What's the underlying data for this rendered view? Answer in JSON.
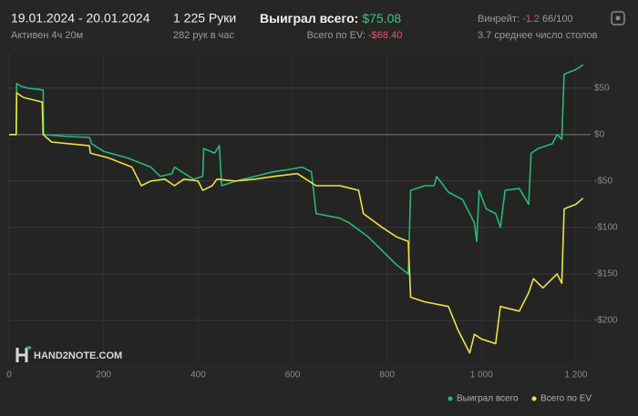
{
  "header": {
    "dates": "19.01.2024 - 20.01.2024",
    "active": "Активен 4ч 20м",
    "hands": "1 225 Руки",
    "rate": "282 рук в час",
    "won_label": "Выиграл всего:",
    "won_value": "$75.08",
    "ev_label": "Всего по EV:",
    "ev_value": "-$68.40",
    "winrate_label": "Винрейт:",
    "winrate_value": "-1.2",
    "winrate_unit": "66/100",
    "tables": "3.7 среднее число столов",
    "logo": "HAND2NOTE.COM"
  },
  "chart_data": {
    "type": "line",
    "xlim": [
      0,
      1231
    ],
    "ylim": [
      -247,
      88
    ],
    "xticks": [
      0,
      200,
      400,
      600,
      800,
      {
        "value": 1000,
        "label": "1 000"
      },
      {
        "value": 1200,
        "label": "1 200"
      }
    ],
    "yticks": [
      {
        "value": 50,
        "label": "$50"
      },
      {
        "value": 0,
        "label": "$0"
      },
      {
        "value": -50,
        "label": "-$50"
      },
      {
        "value": -100,
        "label": "-$100"
      },
      {
        "value": -150,
        "label": "-$150"
      },
      {
        "value": -200,
        "label": "-$200"
      }
    ],
    "grid": true,
    "series": [
      {
        "name": "Выиграл всего",
        "color": "#25b87c",
        "x": [
          0,
          15,
          16,
          25,
          40,
          72,
          73,
          120,
          170,
          175,
          200,
          250,
          300,
          320,
          345,
          350,
          390,
          410,
          412,
          435,
          445,
          450,
          480,
          520,
          560,
          600,
          620,
          640,
          650,
          700,
          720,
          760,
          790,
          820,
          845,
          850,
          880,
          900,
          905,
          930,
          960,
          985,
          990,
          995,
          1010,
          1030,
          1040,
          1050,
          1080,
          1100,
          1105,
          1120,
          1150,
          1160,
          1170,
          1175,
          1200,
          1215
        ],
        "values": [
          0,
          0,
          55,
          52,
          50,
          48,
          0,
          -2,
          -3,
          -10,
          -18,
          -25,
          -35,
          -45,
          -42,
          -35,
          -48,
          -45,
          -15,
          -20,
          -12,
          -55,
          -50,
          -45,
          -40,
          -37,
          -35,
          -40,
          -85,
          -90,
          -95,
          -110,
          -125,
          -140,
          -150,
          -60,
          -55,
          -55,
          -45,
          -62,
          -70,
          -95,
          -115,
          -60,
          -80,
          -85,
          -100,
          -60,
          -58,
          -75,
          -20,
          -15,
          -10,
          0,
          -5,
          65,
          70,
          75.08
        ]
      },
      {
        "name": "Всего по EV",
        "color": "#eee23e",
        "x": [
          0,
          15,
          16,
          30,
          70,
          72,
          90,
          130,
          170,
          172,
          210,
          260,
          280,
          300,
          330,
          350,
          370,
          400,
          410,
          430,
          440,
          480,
          520,
          560,
          610,
          650,
          700,
          740,
          750,
          790,
          820,
          845,
          850,
          880,
          930,
          950,
          975,
          985,
          1000,
          1030,
          1040,
          1080,
          1100,
          1110,
          1130,
          1150,
          1160,
          1170,
          1175,
          1200,
          1215
        ],
        "values": [
          0,
          0,
          45,
          40,
          35,
          0,
          -8,
          -10,
          -12,
          -20,
          -25,
          -35,
          -55,
          -50,
          -48,
          -55,
          -48,
          -50,
          -60,
          -55,
          -48,
          -50,
          -48,
          -45,
          -42,
          -55,
          -55,
          -60,
          -85,
          -100,
          -110,
          -115,
          -175,
          -180,
          -185,
          -210,
          -235,
          -215,
          -220,
          -225,
          -185,
          -190,
          -170,
          -155,
          -165,
          -155,
          -150,
          -160,
          -80,
          -75,
          -68.4
        ]
      }
    ]
  }
}
